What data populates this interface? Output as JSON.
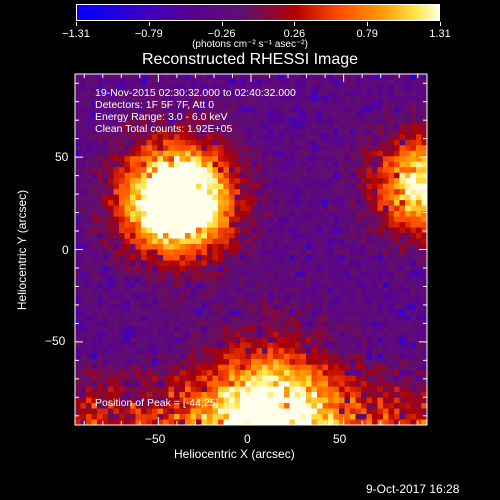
{
  "colorbar": {
    "tick_labels": [
      "-1.31",
      "-0.79",
      "-0.26",
      "0.26",
      "0.79",
      "1.31"
    ],
    "units_label": "(photons cm⁻² s⁻¹ asec⁻²)"
  },
  "plot_title": "Reconstructed RHESSI Image",
  "info_lines": [
    "19-Nov-2015 02:30:32.000 to 02:40:32.000",
    "Detectors: 1F 5F 7F, Att 0",
    "Energy Range: 3.0 - 6.0 keV",
    "Clean     Total counts: 1.92E+05"
  ],
  "peak_label": "Position of Peak = [-44,25]",
  "xlabel": "Heliocentric X (arcsec)",
  "ylabel": "Heliocentric Y (arcsec)",
  "timestamp": "9-Oct-2017 16:28",
  "chart_data": {
    "type": "heatmap",
    "title": "Reconstructed RHESSI Image",
    "xlabel": "Heliocentric X (arcsec)",
    "ylabel": "Heliocentric Y (arcsec)",
    "xlim": [
      -95,
      95
    ],
    "ylim": [
      -95,
      95
    ],
    "x_ticks": [
      -50,
      0,
      50
    ],
    "y_ticks": [
      50,
      0,
      -50
    ],
    "colorbar_range": [
      -1.31,
      1.31
    ],
    "colormap": "blue-purple-red-yellow-white",
    "peak": [
      -44,
      25
    ],
    "sources": [
      {
        "x": -40,
        "y": 27,
        "sigma": 20
      },
      {
        "x": 92,
        "y": 35,
        "sigma": 18
      },
      {
        "x": 10,
        "y": -85,
        "sigma": 25
      }
    ]
  }
}
